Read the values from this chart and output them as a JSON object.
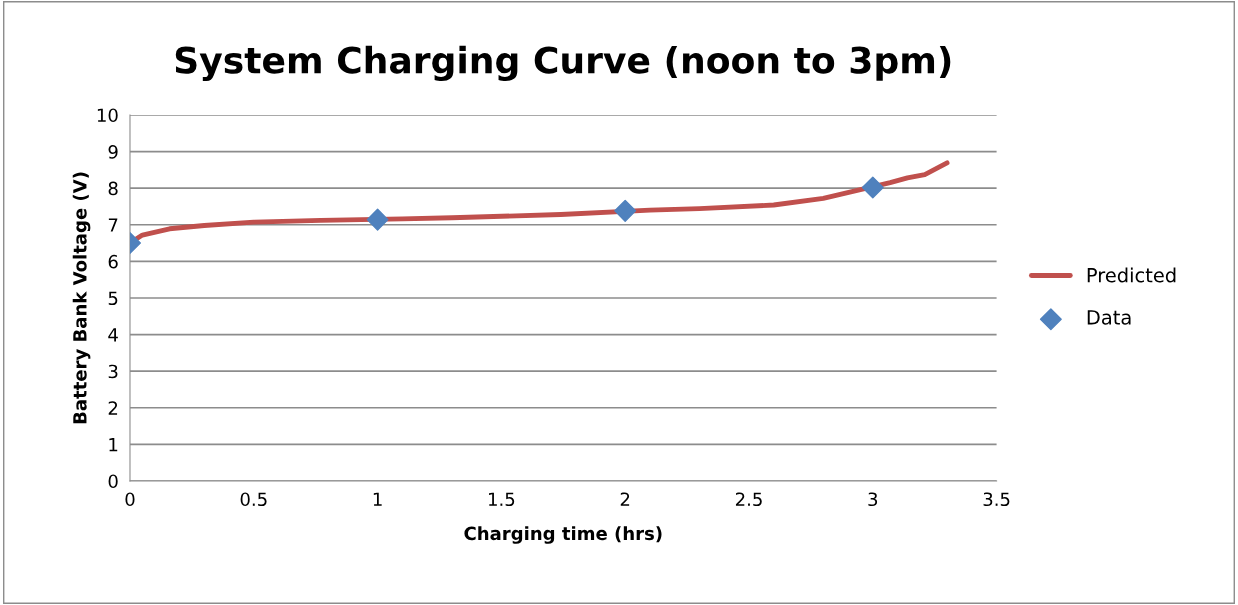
{
  "chart_data": {
    "type": "line",
    "title": "System Charging Curve (noon to 3pm)",
    "xlabel": "Charging time (hrs)",
    "ylabel": "Battery Bank Voltage (V)",
    "xlim": [
      0,
      3.5
    ],
    "xticks": [
      0,
      0.5,
      1,
      1.5,
      2,
      2.5,
      3,
      3.5
    ],
    "ylim": [
      0,
      10
    ],
    "yticks": [
      0,
      1,
      2,
      3,
      4,
      5,
      6,
      7,
      8,
      9,
      10
    ],
    "grid": "y",
    "legend": "right",
    "series": [
      {
        "name": "Predicted",
        "color": "#c0504d",
        "marker": "none",
        "x": [
          0,
          0.05,
          0.16,
          0.3,
          0.5,
          0.77,
          1.1,
          1.3,
          1.74,
          2.1,
          2.3,
          2.6,
          2.8,
          3.07,
          3.14,
          3.21,
          3.3
        ],
        "values": [
          6.5,
          6.72,
          6.89,
          6.98,
          7.07,
          7.12,
          7.16,
          7.19,
          7.28,
          7.4,
          7.44,
          7.54,
          7.72,
          8.15,
          8.28,
          8.37,
          8.69
        ]
      },
      {
        "name": "Data",
        "type": "scatter",
        "color": "#4f81bd",
        "marker": "diamond",
        "x": [
          0,
          1,
          2,
          3
        ],
        "values": [
          6.5,
          7.14,
          7.38,
          8.02
        ]
      }
    ]
  }
}
